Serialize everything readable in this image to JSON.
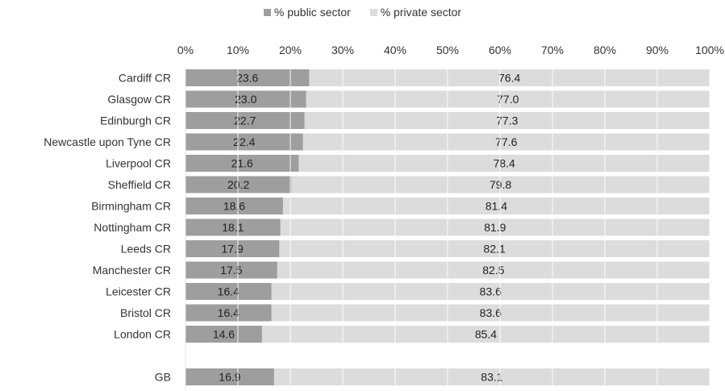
{
  "chart_data": {
    "type": "bar",
    "orientation": "horizontal",
    "stacked": true,
    "percent_stacked": true,
    "categories": [
      "Cardiff CR",
      "Glasgow CR",
      "Edinburgh CR",
      "Newcastle upon Tyne CR",
      "Liverpool CR",
      "Sheffield CR",
      "Birmingham CR",
      "Nottingham CR",
      "Leeds CR",
      "Manchester CR",
      "Leicester CR",
      "Bristol CR",
      "London CR",
      "",
      "GB"
    ],
    "series": [
      {
        "name": "% public sector",
        "color": "#9e9e9e",
        "values": [
          23.6,
          23.0,
          22.7,
          22.4,
          21.6,
          20.2,
          18.6,
          18.1,
          17.9,
          17.5,
          16.4,
          16.4,
          14.6,
          null,
          16.9
        ],
        "labels": [
          "23.6",
          "23.0",
          "22.7",
          "22.4",
          "21.6",
          "20.2",
          "18.6",
          "18.1",
          "17.9",
          "17.5",
          "16.4",
          "16.4",
          "14.6",
          "",
          "16.9"
        ]
      },
      {
        "name": "% private sector",
        "color": "#dcdcdc",
        "values": [
          76.4,
          77.0,
          77.3,
          77.6,
          78.4,
          79.8,
          81.4,
          81.9,
          82.1,
          82.5,
          83.6,
          83.6,
          85.4,
          null,
          83.1
        ],
        "labels": [
          "76.4",
          "77.0",
          "77.3",
          "77.6",
          "78.4",
          "79.8",
          "81.4",
          "81.9",
          "82.1",
          "82.5",
          "83.6",
          "83.6",
          "85.4",
          "",
          "83.1"
        ]
      }
    ],
    "x_ticks": [
      "0%",
      "10%",
      "20%",
      "30%",
      "40%",
      "50%",
      "60%",
      "70%",
      "80%",
      "90%",
      "100%"
    ],
    "xlim": [
      0,
      100
    ],
    "x_axis_position": "top",
    "grid": true,
    "legend_position": "top"
  }
}
